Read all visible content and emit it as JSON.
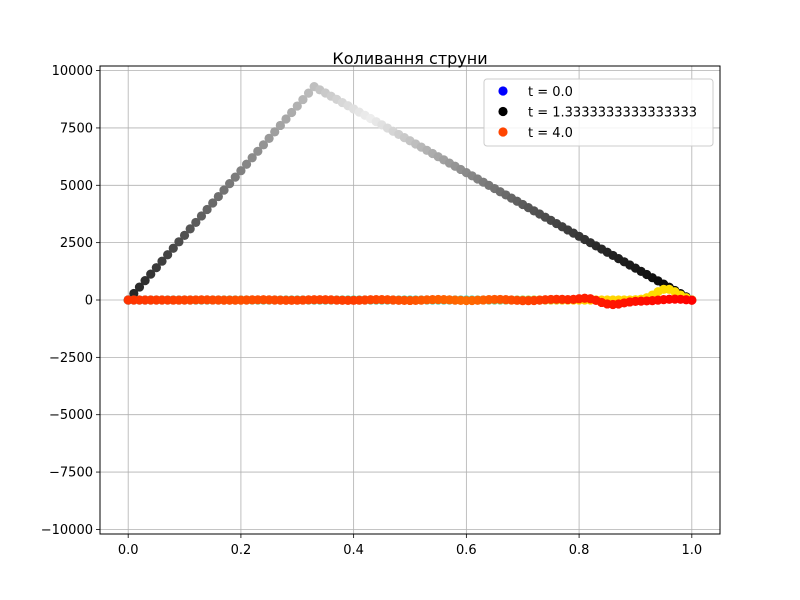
{
  "chart_data": {
    "type": "scatter",
    "title": "Коливання струни",
    "xlabel": "",
    "ylabel": "",
    "xlim": [
      -0.05,
      1.05
    ],
    "ylim": [
      -10200,
      10200
    ],
    "x_ticks": [
      0.0,
      0.2,
      0.4,
      0.6,
      0.8,
      1.0
    ],
    "x_tick_labels": [
      "0.0",
      "0.2",
      "0.4",
      "0.6",
      "0.8",
      "1.0"
    ],
    "y_ticks": [
      10000,
      7500,
      5000,
      2500,
      0,
      -2500,
      -5000,
      -7500,
      -10000
    ],
    "y_tick_labels": [
      "10000",
      "7500",
      "5000",
      "2500",
      "0",
      "−2500",
      "−5000",
      "−7500",
      "−10000"
    ],
    "grid": true,
    "legend_position": "top-right",
    "legend": [
      {
        "label": "t = 0.0",
        "color": "#0000ff"
      },
      {
        "label": "t = 1.3333333333333333",
        "color": "#000000"
      },
      {
        "label": "t = 4.0",
        "color": "#ff4500"
      }
    ],
    "series": [
      {
        "name": "t = 0.0",
        "shape": "triangle",
        "peak_x": 0.33,
        "peak_y": 9300,
        "x_range": [
          0.0,
          1.0
        ],
        "n_points": 101,
        "colormap": [
          "#222222",
          "#666666",
          "#aaaaaa",
          "#eeeeee",
          "#999999",
          "#555555",
          "#222222",
          "#000000"
        ]
      },
      {
        "name": "t = 1.3333333333333333",
        "shape": "flat-with-bump",
        "bump_center": 0.955,
        "bump_height": 480,
        "x_range": [
          0.0,
          1.0
        ],
        "n_points": 101,
        "colormap": [
          "#20c0c0",
          "#3fd8a0",
          "#2fe0b0",
          "#40d8c0",
          "#ffd000",
          "#ffe000"
        ]
      },
      {
        "name": "t = 4.0",
        "shape": "flat-with-wiggle",
        "wiggle_center": 0.86,
        "wiggle_amplitude": 230,
        "x_range": [
          0.0,
          1.0
        ],
        "n_points": 101,
        "colormap": [
          "#ff3300",
          "#ff5000",
          "#ff3c00",
          "#ff6a00",
          "#ff2000",
          "#ff0000"
        ]
      }
    ]
  }
}
